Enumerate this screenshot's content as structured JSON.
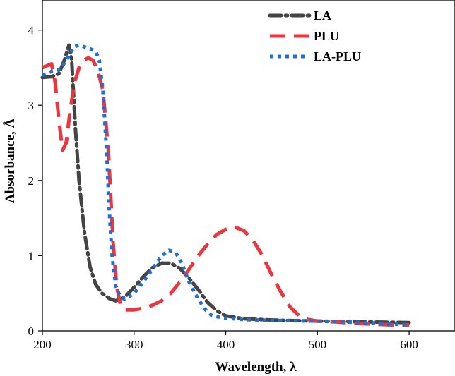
{
  "chart_data": {
    "type": "line",
    "title": "",
    "xlabel": "Wavelength, λ",
    "ylabel": "Absorbance, Å",
    "xlim": [
      200,
      650
    ],
    "ylim": [
      0,
      4.4
    ],
    "xticks": [
      200,
      300,
      400,
      500,
      600
    ],
    "yticks": [
      0,
      1,
      2,
      3,
      4
    ],
    "legend_position": "top-right",
    "grid": false,
    "series": [
      {
        "name": "LA",
        "color": "#444444",
        "style": "dash-dot",
        "points": [
          [
            200,
            3.37
          ],
          [
            210,
            3.38
          ],
          [
            218,
            3.42
          ],
          [
            224,
            3.6
          ],
          [
            229,
            3.8
          ],
          [
            232,
            3.6
          ],
          [
            236,
            2.7
          ],
          [
            240,
            2.0
          ],
          [
            246,
            1.3
          ],
          [
            252,
            0.85
          ],
          [
            258,
            0.62
          ],
          [
            265,
            0.5
          ],
          [
            273,
            0.43
          ],
          [
            280,
            0.4
          ],
          [
            290,
            0.45
          ],
          [
            300,
            0.58
          ],
          [
            310,
            0.72
          ],
          [
            320,
            0.84
          ],
          [
            330,
            0.9
          ],
          [
            340,
            0.9
          ],
          [
            350,
            0.83
          ],
          [
            360,
            0.7
          ],
          [
            370,
            0.55
          ],
          [
            380,
            0.38
          ],
          [
            390,
            0.27
          ],
          [
            400,
            0.2
          ],
          [
            420,
            0.16
          ],
          [
            440,
            0.15
          ],
          [
            460,
            0.14
          ],
          [
            500,
            0.13
          ],
          [
            550,
            0.12
          ],
          [
            600,
            0.11
          ]
        ]
      },
      {
        "name": "PLU",
        "color": "#e8373f",
        "style": "dashed",
        "points": [
          [
            200,
            3.5
          ],
          [
            210,
            3.55
          ],
          [
            214,
            3.3
          ],
          [
            218,
            2.8
          ],
          [
            222,
            2.4
          ],
          [
            226,
            2.5
          ],
          [
            230,
            2.9
          ],
          [
            235,
            3.3
          ],
          [
            240,
            3.5
          ],
          [
            245,
            3.6
          ],
          [
            250,
            3.63
          ],
          [
            255,
            3.6
          ],
          [
            260,
            3.48
          ],
          [
            266,
            3.2
          ],
          [
            272,
            2.4
          ],
          [
            277,
            1.2
          ],
          [
            281,
            0.6
          ],
          [
            285,
            0.35
          ],
          [
            290,
            0.28
          ],
          [
            300,
            0.28
          ],
          [
            310,
            0.3
          ],
          [
            320,
            0.34
          ],
          [
            330,
            0.4
          ],
          [
            340,
            0.5
          ],
          [
            350,
            0.65
          ],
          [
            360,
            0.82
          ],
          [
            370,
            1.0
          ],
          [
            380,
            1.15
          ],
          [
            390,
            1.28
          ],
          [
            400,
            1.35
          ],
          [
            410,
            1.38
          ],
          [
            420,
            1.33
          ],
          [
            430,
            1.2
          ],
          [
            440,
            1.0
          ],
          [
            450,
            0.75
          ],
          [
            460,
            0.52
          ],
          [
            470,
            0.32
          ],
          [
            480,
            0.2
          ],
          [
            490,
            0.15
          ],
          [
            500,
            0.13
          ],
          [
            520,
            0.12
          ],
          [
            540,
            0.1
          ],
          [
            560,
            0.09
          ],
          [
            580,
            0.08
          ],
          [
            600,
            0.08
          ]
        ]
      },
      {
        "name": "LA-PLU",
        "color": "#1f6fd6",
        "style": "dotted",
        "points": [
          [
            200,
            3.4
          ],
          [
            210,
            3.45
          ],
          [
            220,
            3.48
          ],
          [
            228,
            3.65
          ],
          [
            235,
            3.78
          ],
          [
            240,
            3.8
          ],
          [
            245,
            3.78
          ],
          [
            252,
            3.75
          ],
          [
            258,
            3.72
          ],
          [
            262,
            3.6
          ],
          [
            266,
            3.2
          ],
          [
            270,
            2.4
          ],
          [
            273,
            1.6
          ],
          [
            276,
            1.0
          ],
          [
            280,
            0.6
          ],
          [
            285,
            0.45
          ],
          [
            290,
            0.42
          ],
          [
            300,
            0.5
          ],
          [
            310,
            0.65
          ],
          [
            320,
            0.82
          ],
          [
            330,
            1.0
          ],
          [
            338,
            1.07
          ],
          [
            345,
            1.05
          ],
          [
            352,
            0.9
          ],
          [
            360,
            0.65
          ],
          [
            370,
            0.42
          ],
          [
            378,
            0.28
          ],
          [
            385,
            0.2
          ],
          [
            400,
            0.17
          ],
          [
            420,
            0.15
          ],
          [
            450,
            0.14
          ],
          [
            500,
            0.13
          ],
          [
            550,
            0.11
          ],
          [
            600,
            0.08
          ]
        ]
      }
    ]
  }
}
